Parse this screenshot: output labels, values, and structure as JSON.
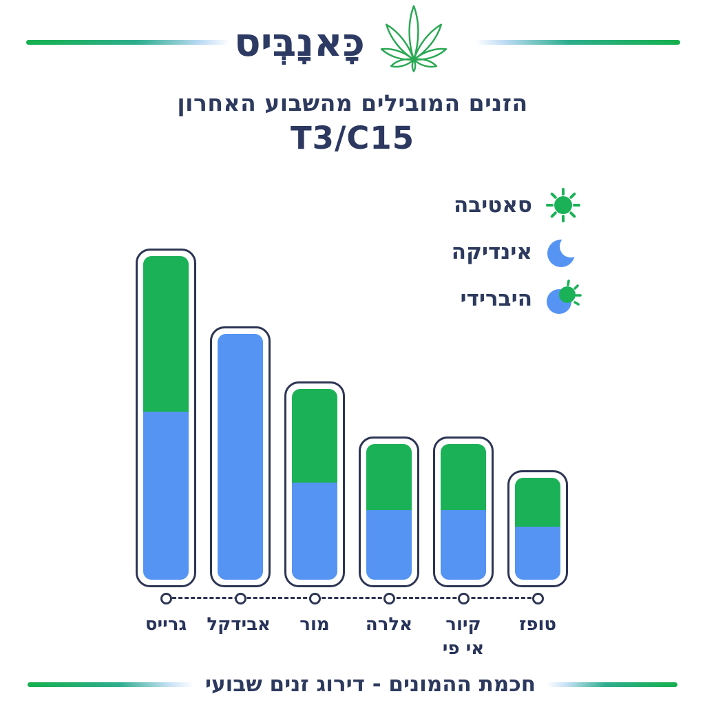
{
  "logo": {
    "text": "כָּאנָבְּיס",
    "leaf_icon": "cannabis-leaf-icon"
  },
  "title": {
    "line1": "הזנים המובילים מהשבוע האחרון",
    "line2": "T3/C15"
  },
  "legend": {
    "items": [
      {
        "label": "סאטיבה",
        "icon": "sun-icon",
        "color": "#1bb257"
      },
      {
        "label": "אינדיקה",
        "icon": "moon-icon",
        "color": "#5594f3"
      },
      {
        "label": "היברידי",
        "icon": "hybrid-sun-moon-icon",
        "color": "#1bb257/#5594f3"
      }
    ]
  },
  "footer": {
    "text": "חכמת ההמונים - דירוג זנים שבועי"
  },
  "colors": {
    "sativa_green": "#1bb257",
    "indica_blue": "#5594f3",
    "navy_outline": "#2d3554",
    "navy_text": "#2d3a5e",
    "accent_line_green": "#15b04d",
    "background": "#ffffff"
  },
  "chart_data": {
    "type": "bar",
    "stacked": true,
    "orientation": "vertical",
    "title": "הזנים המובילים מהשבוע האחרון T3/C15",
    "xlabel": "",
    "ylabel": "",
    "value_axis_visible": false,
    "grid": false,
    "legend_position": "upper right",
    "categories": [
      "גרייס",
      "אבידקל",
      "מור",
      "אלרה",
      "קיור אי פי",
      "טופז"
    ],
    "category_lines": [
      [
        "גרייס"
      ],
      [
        "אבידקל"
      ],
      [
        "מור"
      ],
      [
        "אלרה"
      ],
      [
        "קיור",
        "אי פי"
      ],
      [
        "טופז"
      ]
    ],
    "series": [
      {
        "name": "סאטיבה",
        "role": "sativa",
        "color": "#1bb257",
        "values": [
          48,
          0,
          29,
          20.5,
          20.5,
          15
        ]
      },
      {
        "name": "אינדיקה",
        "role": "indica",
        "color": "#5594f3",
        "values": [
          52,
          76,
          30,
          21.5,
          21.5,
          16.5
        ]
      }
    ],
    "totals": [
      100,
      76,
      59,
      42,
      42,
      31.5
    ],
    "ylim": [
      0,
      100
    ]
  }
}
